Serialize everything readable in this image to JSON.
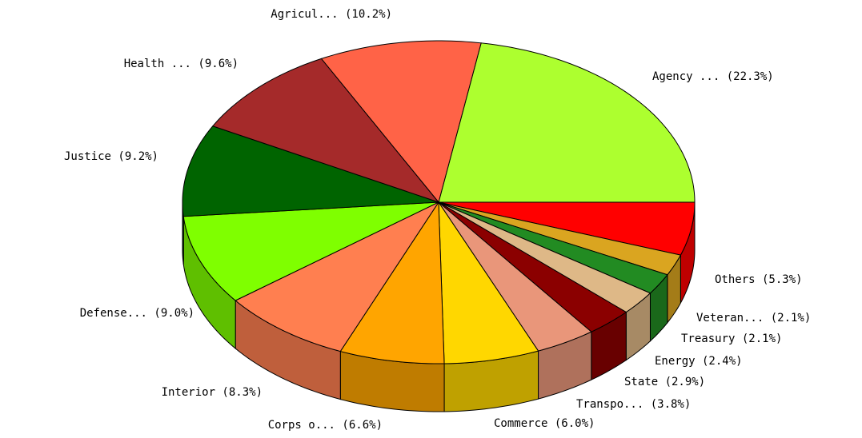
{
  "chart_data": {
    "type": "pie",
    "categories": [
      "Agency ... (22.3%)",
      "Others (5.3%)",
      "Veteran... (2.1%)",
      "Treasury (2.1%)",
      "Energy (2.4%)",
      "State (2.9%)",
      "Transpo... (3.8%)",
      "Commerce (6.0%)",
      "Corps o... (6.6%)",
      "Interior (8.3%)",
      "Defense... (9.0%)",
      "Justice (9.2%)",
      "Health ... (9.6%)",
      "Agricul... (10.2%)"
    ],
    "values": [
      22.3,
      5.3,
      2.1,
      2.1,
      2.4,
      2.9,
      3.8,
      6.0,
      6.6,
      8.3,
      9.0,
      9.2,
      9.6,
      10.2
    ],
    "colors": [
      "#adff2f",
      "#ff0000",
      "#daa520",
      "#228b22",
      "#deb887",
      "#8b0000",
      "#e9967a",
      "#ffd700",
      "#ffa500",
      "#ff7f50",
      "#7fff00",
      "#006400",
      "#a52a2a",
      "#ff6347"
    ]
  }
}
